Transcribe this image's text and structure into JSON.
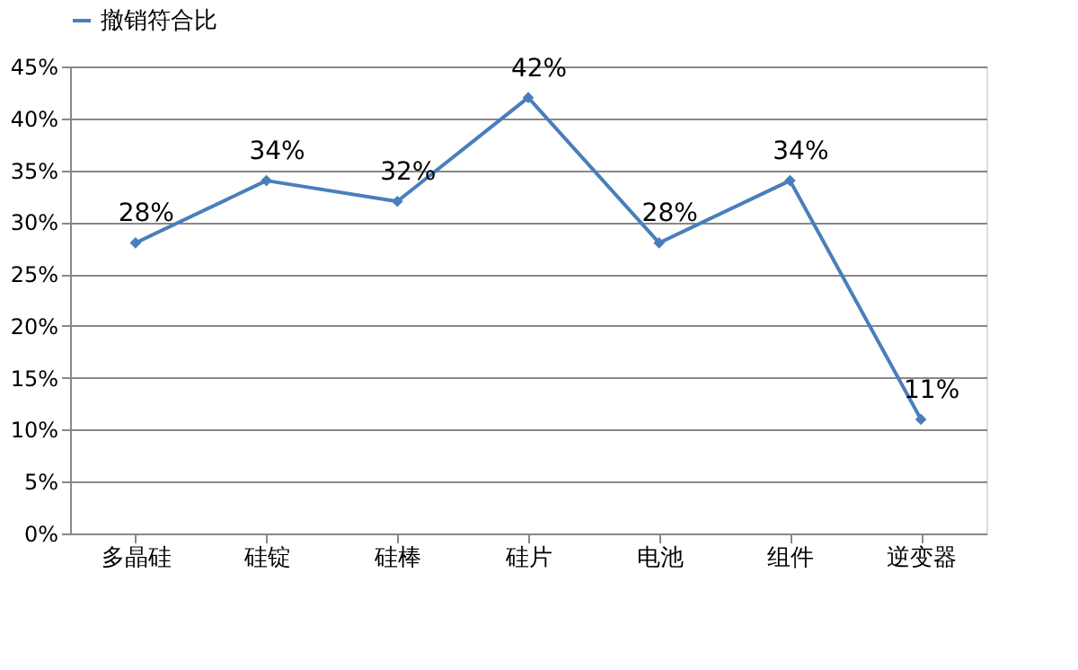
{
  "chart_data": {
    "type": "line",
    "categories": [
      "多晶硅",
      "硅锭",
      "硅棒",
      "硅片",
      "电池",
      "组件",
      "逆变器"
    ],
    "series": [
      {
        "name": "撤销符合比",
        "color": "#4a7ebb",
        "values": [
          28,
          34,
          32,
          42,
          28,
          34,
          11
        ],
        "value_labels": [
          "28%",
          "34%",
          "32%",
          "42%",
          "28%",
          "34%",
          "11%"
        ]
      }
    ],
    "ylim": [
      0,
      45
    ],
    "yticks": [
      {
        "value": 0,
        "label": "0%"
      },
      {
        "value": 5,
        "label": "5%"
      },
      {
        "value": 10,
        "label": "10%"
      },
      {
        "value": 15,
        "label": "15%"
      },
      {
        "value": 20,
        "label": "20%"
      },
      {
        "value": 25,
        "label": "25%"
      },
      {
        "value": 30,
        "label": "30%"
      },
      {
        "value": 35,
        "label": "35%"
      },
      {
        "value": 40,
        "label": "40%"
      },
      {
        "value": 45,
        "label": "45%"
      }
    ],
    "grid": "y",
    "legend": "top",
    "marker": "diamond",
    "line_style": "solid"
  }
}
